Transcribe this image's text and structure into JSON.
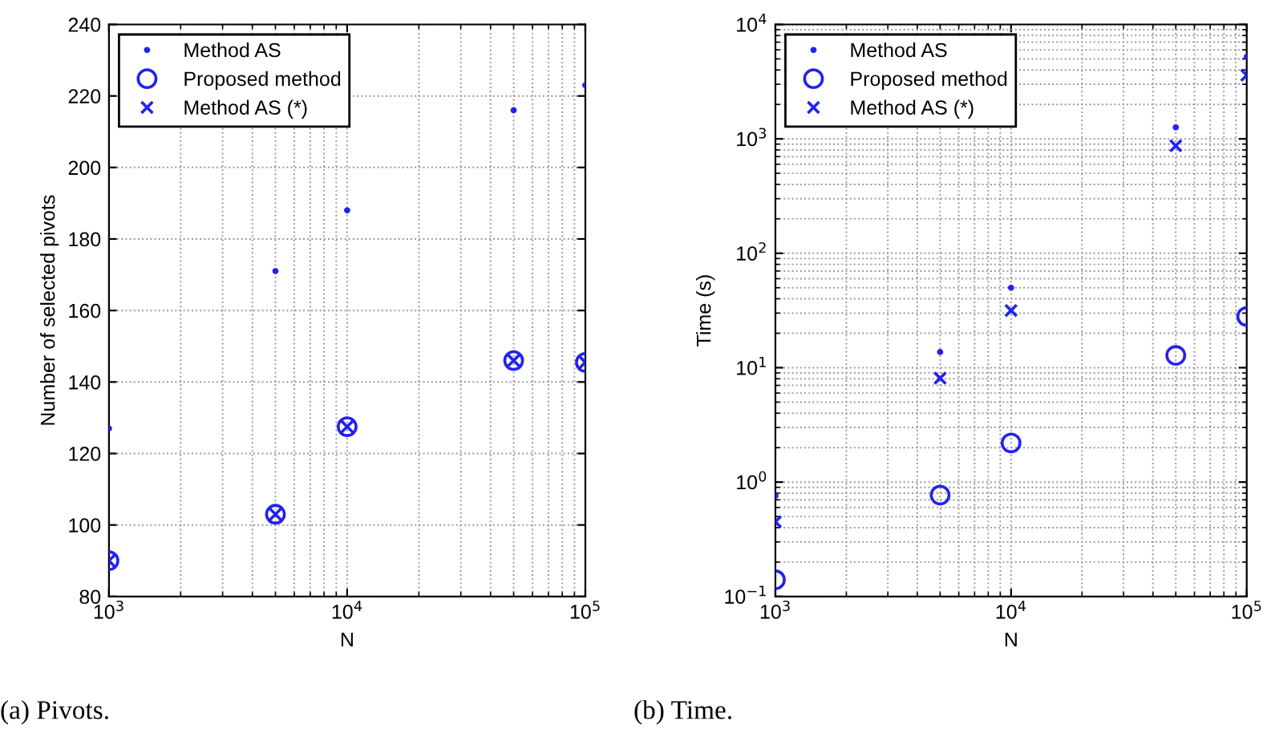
{
  "chart_data": [
    {
      "type": "scatter",
      "xlabel": "N",
      "ylabel": "Number of selected pivots",
      "annotations": [
        "(a) Pivots."
      ],
      "x": [
        1000,
        5000,
        10000,
        50000,
        100000
      ],
      "log": "x",
      "grid": true,
      "legend": "top left",
      "xlim": [
        1000,
        100000
      ],
      "xticks": [
        {
          "value": 1000,
          "label": "10$^{3}$"
        },
        {
          "value": 10000,
          "label": "10$^{4}$"
        },
        {
          "value": 100000,
          "label": "10$^{5}$"
        }
      ],
      "ylim": [
        80,
        240
      ],
      "yticks": [
        80,
        100,
        120,
        140,
        160,
        180,
        200,
        220,
        240
      ],
      "series": [
        {
          "name": "Method AS",
          "color": "#2222ee",
          "marker": "point",
          "values": [
            127,
            171,
            188,
            216,
            223
          ]
        },
        {
          "name": "Proposed method",
          "color": "#2222ee",
          "marker": "circle",
          "values": [
            90,
            103,
            127.5,
            146,
            145.5
          ]
        },
        {
          "name": "Method AS (*)",
          "color": "#2222ee",
          "marker": "cross",
          "values": [
            90,
            103,
            127.5,
            146,
            145.5
          ]
        }
      ]
    },
    {
      "type": "scatter",
      "xlabel": "N",
      "ylabel": "Time (s)",
      "annotations": [
        "(b) Time."
      ],
      "x": [
        1000,
        5000,
        10000,
        50000,
        100000
      ],
      "log": "xy",
      "grid": true,
      "legend": "top left",
      "xlim": [
        1000,
        100000
      ],
      "xticks": [
        {
          "value": 1000,
          "label": "10$^{3}$"
        },
        {
          "value": 10000,
          "label": "10$^{4}$"
        },
        {
          "value": 100000,
          "label": "10$^{5}$"
        }
      ],
      "ylim": [
        0.1,
        10000
      ],
      "yticks": [
        {
          "value": 0.1,
          "label": "10$^{−1}$"
        },
        {
          "value": 1,
          "label": "10$^{0}$"
        },
        {
          "value": 10,
          "label": "10$^{1}$"
        },
        {
          "value": 100,
          "label": "10$^{2}$"
        },
        {
          "value": 1000,
          "label": "10$^{3}$"
        },
        {
          "value": 10000,
          "label": "10$^{4}$"
        }
      ],
      "series": [
        {
          "name": "Method AS",
          "color": "#2222ee",
          "marker": "point",
          "values": [
            0.76,
            13.7,
            50,
            1260,
            5200
          ]
        },
        {
          "name": "Proposed method",
          "color": "#2222ee",
          "marker": "circle",
          "values": [
            0.14,
            0.77,
            2.2,
            12.8,
            28
          ]
        },
        {
          "name": "Method AS (*)",
          "color": "#2222ee",
          "marker": "cross",
          "values": [
            0.45,
            8.1,
            31.6,
            870,
            3600
          ]
        }
      ]
    }
  ]
}
